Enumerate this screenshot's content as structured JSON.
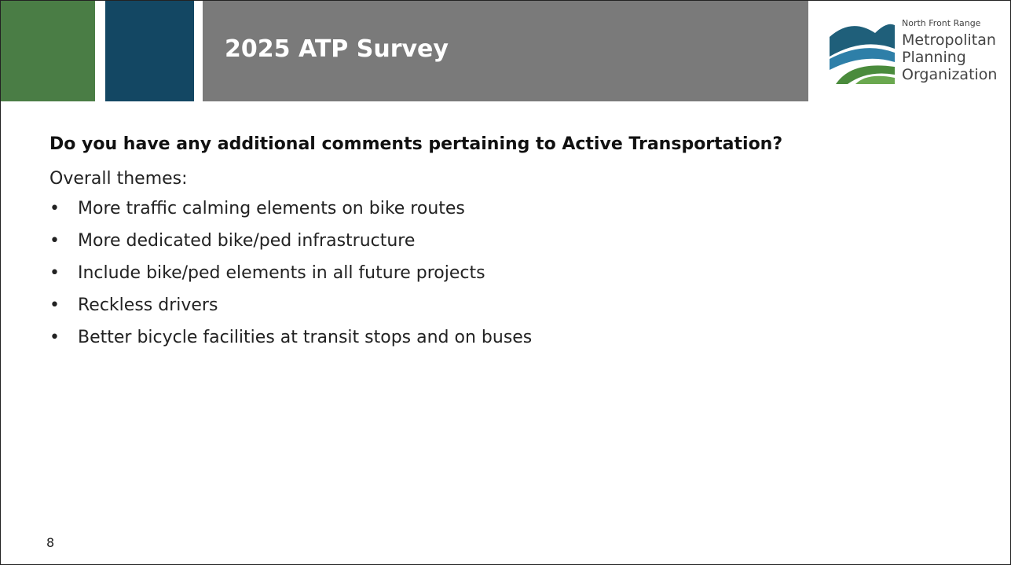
{
  "header": {
    "title": "2025 ATP Survey",
    "logo": {
      "small": "North Front Range",
      "lines": [
        "Metropolitan",
        "Planning",
        "Organization"
      ]
    }
  },
  "body": {
    "question": "Do you have any additional comments pertaining to Active Transportation?",
    "intro": "Overall themes:",
    "bullets": [
      "More traffic calming elements on bike routes",
      "More dedicated bike/ped infrastructure",
      "Include bike/ped elements in all future projects",
      "Reckless drivers",
      "Better bicycle facilities at transit stops and on buses"
    ]
  },
  "footer": {
    "page": "8"
  }
}
